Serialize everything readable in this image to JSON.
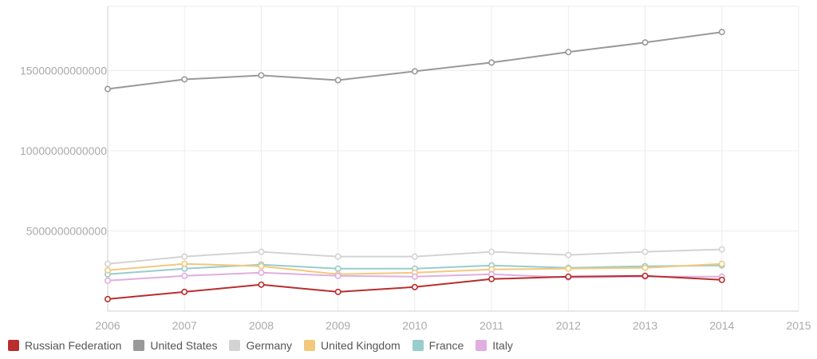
{
  "chart_data": {
    "type": "line",
    "title": "",
    "xlabel": "",
    "ylabel": "",
    "x": [
      2006,
      2007,
      2008,
      2009,
      2010,
      2011,
      2012,
      2013,
      2014
    ],
    "xlim": [
      2006,
      2015
    ],
    "ylim": [
      0,
      19000000000000
    ],
    "x_ticks": [
      "2006",
      "2007",
      "2008",
      "2009",
      "2010",
      "2011",
      "2012",
      "2013",
      "2014",
      "2015"
    ],
    "x_tick_values": [
      2006,
      2007,
      2008,
      2009,
      2010,
      2011,
      2012,
      2013,
      2014,
      2015
    ],
    "y_ticks": [
      "5000000000000",
      "10000000000000",
      "15000000000000"
    ],
    "y_tick_values": [
      5000000000000,
      10000000000000,
      15000000000000
    ],
    "grid": true,
    "legend_position": "bottom-left",
    "series": [
      {
        "name": "Russian Federation",
        "color": "#b82e2e",
        "values": [
          750000000000,
          1200000000000,
          1650000000000,
          1200000000000,
          1500000000000,
          2000000000000,
          2150000000000,
          2200000000000,
          1950000000000
        ]
      },
      {
        "name": "United States",
        "color": "#999999",
        "values": [
          13850000000000,
          14450000000000,
          14700000000000,
          14400000000000,
          14950000000000,
          15500000000000,
          16150000000000,
          16750000000000,
          17400000000000
        ]
      },
      {
        "name": "Germany",
        "color": "#d3d3d3",
        "values": [
          2950000000000,
          3400000000000,
          3700000000000,
          3400000000000,
          3400000000000,
          3700000000000,
          3500000000000,
          3700000000000,
          3850000000000
        ]
      },
      {
        "name": "United Kingdom",
        "color": "#f2c87d",
        "values": [
          2550000000000,
          2950000000000,
          2800000000000,
          2300000000000,
          2400000000000,
          2600000000000,
          2650000000000,
          2700000000000,
          2950000000000
        ]
      },
      {
        "name": "France",
        "color": "#99cccc",
        "values": [
          2300000000000,
          2650000000000,
          2900000000000,
          2650000000000,
          2650000000000,
          2850000000000,
          2700000000000,
          2800000000000,
          2850000000000
        ]
      },
      {
        "name": "Italy",
        "color": "#e0aee0",
        "values": [
          1900000000000,
          2200000000000,
          2400000000000,
          2200000000000,
          2150000000000,
          2300000000000,
          2100000000000,
          2150000000000,
          2150000000000
        ]
      }
    ]
  }
}
